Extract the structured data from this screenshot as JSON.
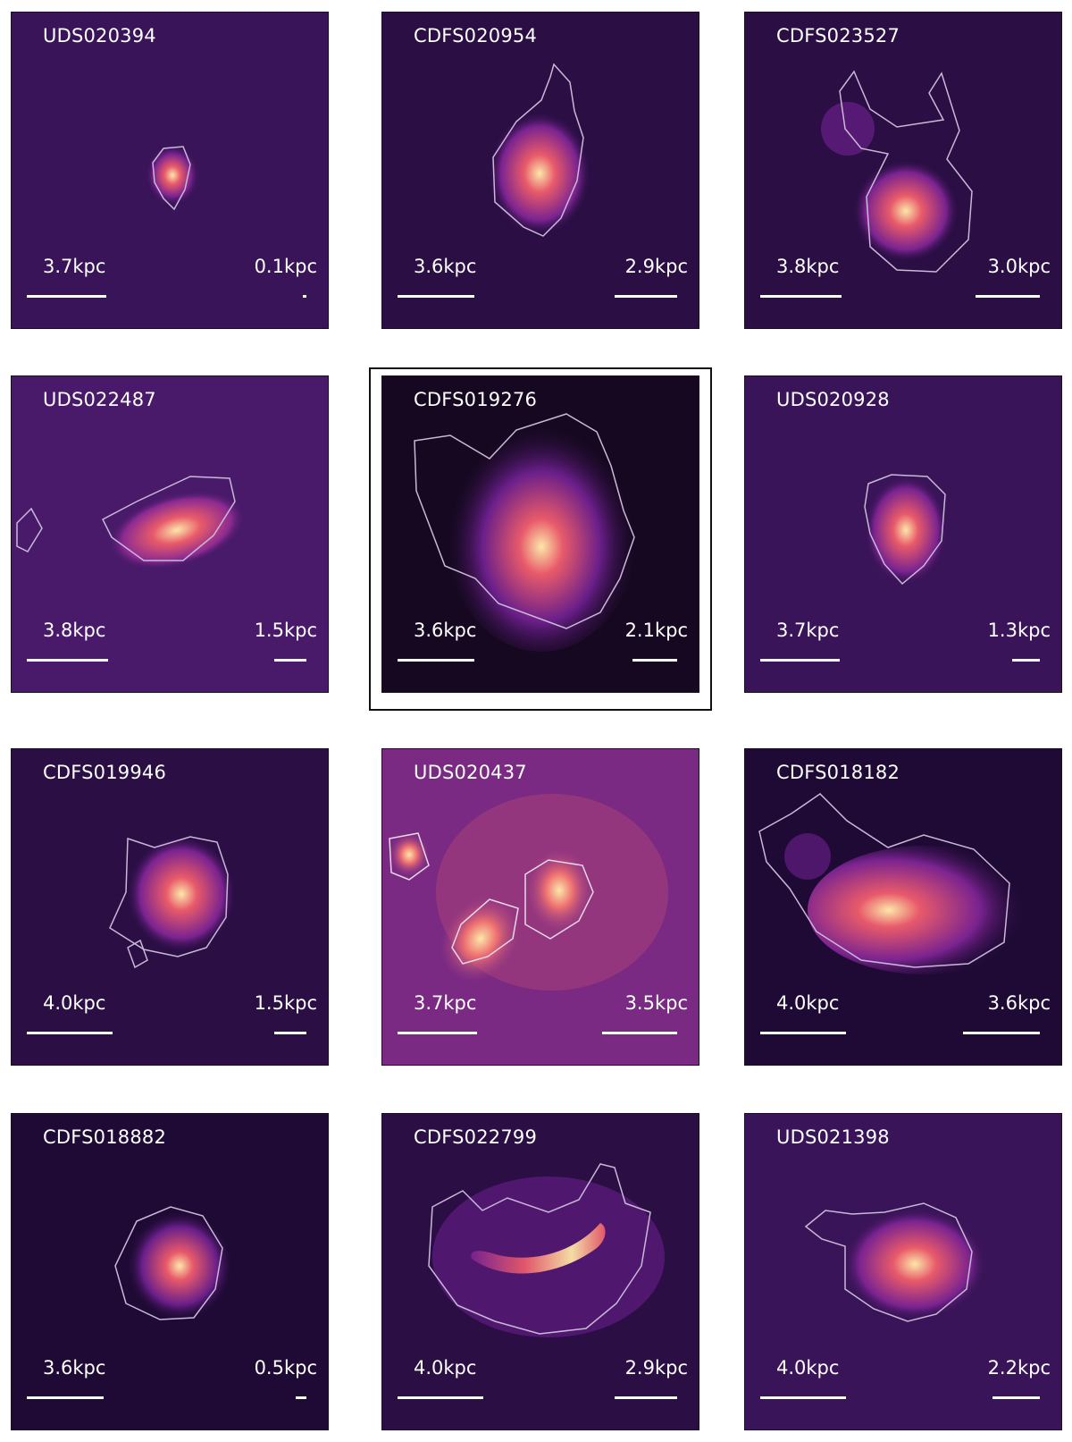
{
  "figure": {
    "panels": [
      {
        "id": "UDS020394",
        "scale_left": "3.7kpc",
        "scale_right": "0.1kpc",
        "left_bar_kpc": 3.7,
        "right_bar_kpc": 0.1,
        "highlighted": false
      },
      {
        "id": "CDFS020954",
        "scale_left": "3.6kpc",
        "scale_right": "2.9kpc",
        "left_bar_kpc": 3.6,
        "right_bar_kpc": 2.9,
        "highlighted": false
      },
      {
        "id": "CDFS023527",
        "scale_left": "3.8kpc",
        "scale_right": "3.0kpc",
        "left_bar_kpc": 3.8,
        "right_bar_kpc": 3.0,
        "highlighted": false
      },
      {
        "id": "UDS022487",
        "scale_left": "3.8kpc",
        "scale_right": "1.5kpc",
        "left_bar_kpc": 3.8,
        "right_bar_kpc": 1.5,
        "highlighted": false
      },
      {
        "id": "CDFS019276",
        "scale_left": "3.6kpc",
        "scale_right": "2.1kpc",
        "left_bar_kpc": 3.6,
        "right_bar_kpc": 2.1,
        "highlighted": true
      },
      {
        "id": "UDS020928",
        "scale_left": "3.7kpc",
        "scale_right": "1.3kpc",
        "left_bar_kpc": 3.7,
        "right_bar_kpc": 1.3,
        "highlighted": false
      },
      {
        "id": "CDFS019946",
        "scale_left": "4.0kpc",
        "scale_right": "1.5kpc",
        "left_bar_kpc": 4.0,
        "right_bar_kpc": 1.5,
        "highlighted": false
      },
      {
        "id": "UDS020437",
        "scale_left": "3.7kpc",
        "scale_right": "3.5kpc",
        "left_bar_kpc": 3.7,
        "right_bar_kpc": 3.5,
        "highlighted": false
      },
      {
        "id": "CDFS018182",
        "scale_left": "4.0kpc",
        "scale_right": "3.6kpc",
        "left_bar_kpc": 4.0,
        "right_bar_kpc": 3.6,
        "highlighted": false
      },
      {
        "id": "CDFS018882",
        "scale_left": "3.6kpc",
        "scale_right": "0.5kpc",
        "left_bar_kpc": 3.6,
        "right_bar_kpc": 0.5,
        "highlighted": false
      },
      {
        "id": "CDFS022799",
        "scale_left": "4.0kpc",
        "scale_right": "2.9kpc",
        "left_bar_kpc": 4.0,
        "right_bar_kpc": 2.9,
        "highlighted": false
      },
      {
        "id": "UDS021398",
        "scale_left": "4.0kpc",
        "scale_right": "2.2kpc",
        "left_bar_kpc": 4.0,
        "right_bar_kpc": 2.2,
        "highlighted": false
      }
    ],
    "colors": {
      "background": "#1a0b2e",
      "mid": "#6a1f8a",
      "bright": "#e85a6a",
      "core": "#fce7a8",
      "contour": "#c9b8d8",
      "text": "#ffffff"
    }
  }
}
